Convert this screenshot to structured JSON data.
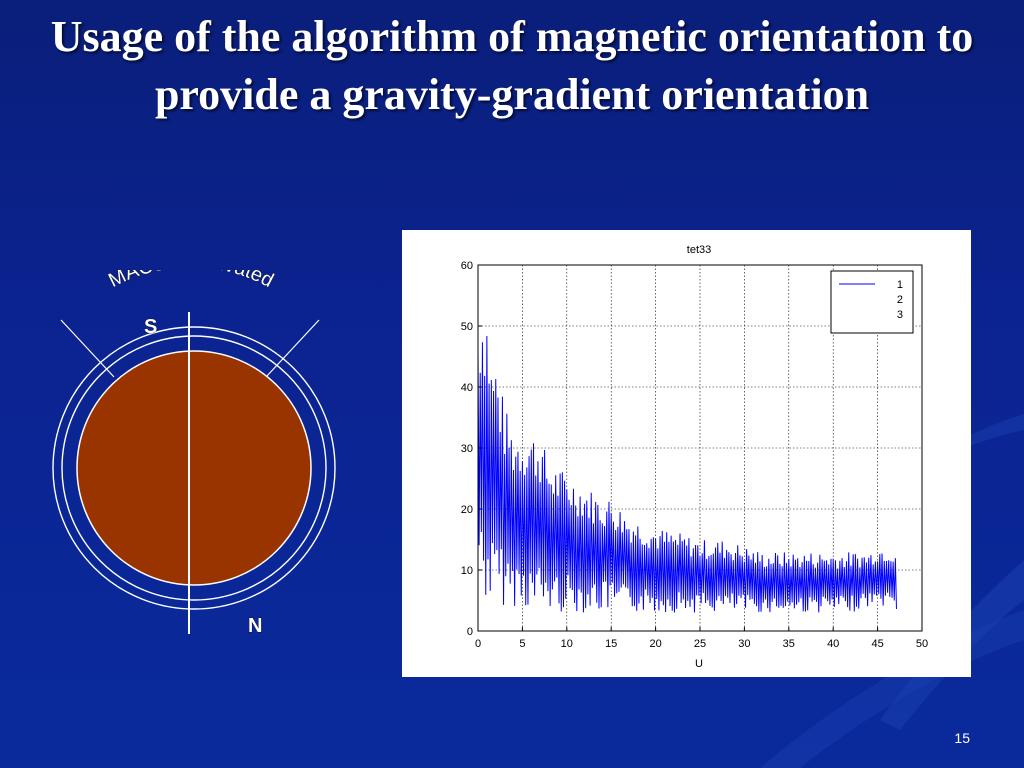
{
  "slide": {
    "title": "Usage of the algorithm of magnetic orientation to provide a gravity-gradient orientation",
    "number": "15"
  },
  "diagram": {
    "arc_label": "MACS is activated",
    "label_s": "S",
    "label_n": "N",
    "colors": {
      "planet_fill": "#993300",
      "rings": "#ffffff"
    }
  },
  "chart_data": {
    "type": "line",
    "title": "tet33",
    "xlabel": "U",
    "ylabel": "",
    "xlim": [
      0,
      50
    ],
    "ylim": [
      0,
      60
    ],
    "xticks": [
      0,
      5,
      10,
      15,
      20,
      25,
      30,
      35,
      40,
      45,
      50
    ],
    "yticks": [
      0,
      10,
      20,
      30,
      40,
      50,
      60
    ],
    "grid": true,
    "legend": {
      "position": "top-right",
      "entries": [
        "1",
        "2",
        "3"
      ]
    },
    "series": [
      {
        "name": "1",
        "color": "#0000ff",
        "envelope_x": [
          0,
          0.5,
          1,
          1.5,
          2,
          3,
          4,
          5,
          6,
          7,
          8,
          9,
          10,
          11,
          12,
          13,
          14,
          15,
          17,
          20,
          23,
          25,
          28,
          30,
          32,
          35,
          38,
          40,
          42,
          44,
          45,
          46,
          47.2
        ],
        "envelope_peak": [
          52,
          55,
          54,
          45,
          45,
          37,
          33,
          33,
          33,
          32,
          28,
          27,
          26,
          25,
          24,
          23,
          22,
          22,
          19,
          17,
          16,
          15,
          15,
          14,
          13,
          13,
          13,
          13,
          13,
          13,
          14,
          14,
          14
        ],
        "envelope_trough": [
          10,
          5,
          4,
          4,
          4,
          4,
          4,
          4,
          3,
          3,
          3,
          3,
          3,
          3,
          3,
          3,
          3,
          3,
          3,
          3,
          3,
          3,
          3,
          3,
          3,
          3,
          3,
          3,
          3,
          4,
          4,
          4,
          3
        ],
        "oscillation_period": 0.25
      }
    ]
  }
}
